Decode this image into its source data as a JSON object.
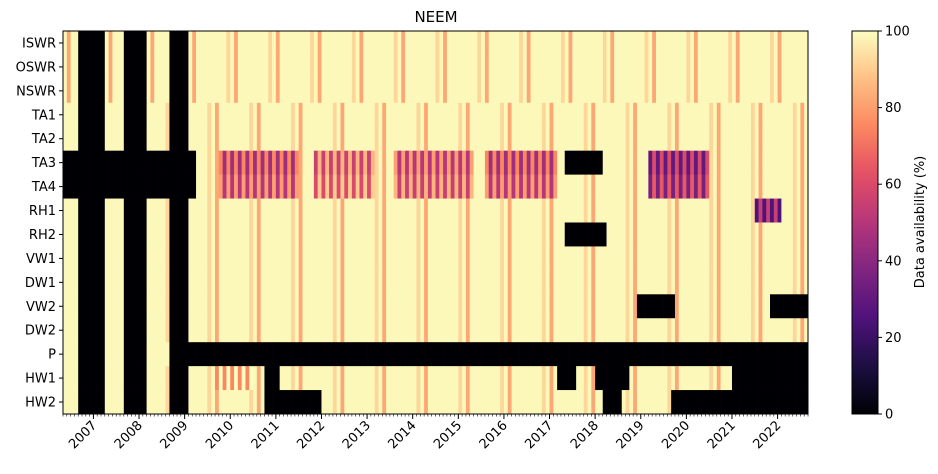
{
  "chart_data": {
    "type": "heatmap",
    "title": "NEEM",
    "colorbar_label": "Data availability (%)",
    "colormap": "magma",
    "value_range": [
      0,
      100
    ],
    "colorbar_ticks": [
      0,
      20,
      40,
      60,
      80,
      100
    ],
    "y_categories": [
      "ISWR",
      "OSWR",
      "NSWR",
      "TA1",
      "TA2",
      "TA3",
      "TA4",
      "RH1",
      "RH2",
      "VW1",
      "DW1",
      "VW2",
      "DW2",
      "P",
      "HW1",
      "HW2"
    ],
    "x_start": "2006-05",
    "x_end": "2022-08",
    "x_tick_labels": [
      "2007",
      "2008",
      "2009",
      "2010",
      "2011",
      "2012",
      "2013",
      "2014",
      "2015",
      "2016",
      "2017",
      "2018",
      "2019",
      "2020",
      "2021",
      "2022"
    ],
    "gaps_all_variables": [
      [
        "2006-09",
        "2007-03"
      ],
      [
        "2007-09",
        "2008-02"
      ],
      [
        "2008-09",
        "2009-01"
      ]
    ],
    "zero_availability_periods": {
      "TA3": [
        [
          "2006-05",
          "2009-03"
        ],
        [
          "2017-05",
          "2018-02"
        ]
      ],
      "TA4": [
        [
          "2006-05",
          "2009-03"
        ]
      ],
      "RH2": [
        [
          "2017-05",
          "2018-03"
        ]
      ],
      "P": [
        [
          "2009-01",
          "2022-08"
        ]
      ],
      "HW1": [
        [
          "2010-10",
          "2011-01"
        ],
        [
          "2017-03",
          "2017-07"
        ],
        [
          "2018-01",
          "2018-09"
        ],
        [
          "2021-01",
          "2022-08"
        ]
      ],
      "HW2": [
        [
          "2010-10",
          "2012-00"
        ],
        [
          "2018-03",
          "2018-07"
        ],
        [
          "2019-09",
          "2020-10"
        ],
        [
          "2020-10",
          "2022-08"
        ]
      ],
      "VW2": [
        [
          "2019-00",
          "2019-09"
        ],
        [
          "2021-11",
          "2022-08"
        ]
      ]
    },
    "low_availability_periods": {
      "TA3": [
        [
          "2009-10",
          "2011-06",
          45
        ],
        [
          "2011-11",
          "2013-02",
          55
        ],
        [
          "2013-08",
          "2015-04",
          50
        ],
        [
          "2015-08",
          "2017-02",
          45
        ],
        [
          "2019-03",
          "2020-06",
          30
        ]
      ],
      "TA4": [
        [
          "2009-10",
          "2011-06",
          50
        ],
        [
          "2011-11",
          "2013-02",
          60
        ],
        [
          "2013-08",
          "2015-04",
          55
        ],
        [
          "2015-08",
          "2017-02",
          50
        ],
        [
          "2019-03",
          "2020-06",
          35
        ]
      ],
      "RH1": [
        [
          "2021-07",
          "2022-01",
          25
        ]
      ],
      "HW1": [
        [
          "2009-09",
          "2010-06",
          75
        ]
      ]
    }
  }
}
